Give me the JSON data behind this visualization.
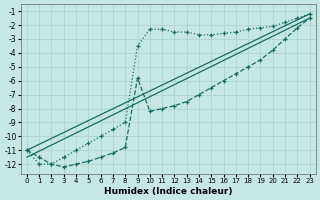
{
  "xlabel": "Humidex (Indice chaleur)",
  "background_color": "#c5e8e5",
  "grid_color": "#a8d0cd",
  "line_color": "#1a6b65",
  "xlim": [
    -0.5,
    23.5
  ],
  "ylim": [
    -12.7,
    -0.5
  ],
  "x_ticks": [
    0,
    1,
    2,
    3,
    4,
    5,
    6,
    7,
    8,
    9,
    10,
    11,
    12,
    13,
    14,
    15,
    16,
    17,
    18,
    19,
    20,
    21,
    22,
    23
  ],
  "y_ticks": [
    -1,
    -2,
    -3,
    -4,
    -5,
    -6,
    -7,
    -8,
    -9,
    -10,
    -11,
    -12
  ],
  "series1_x": [
    0,
    1,
    2,
    3,
    4,
    5,
    6,
    7,
    8,
    9,
    10,
    11,
    12,
    13,
    14,
    15,
    16,
    17,
    18,
    19,
    20,
    21,
    22,
    23
  ],
  "series1_y": [
    -11.0,
    -12.0,
    -12.0,
    -11.5,
    -11.0,
    -10.5,
    -10.0,
    -9.5,
    -9.0,
    -3.5,
    -2.3,
    -2.3,
    -2.5,
    -2.5,
    -2.7,
    -2.7,
    -2.6,
    -2.5,
    -2.3,
    -2.2,
    -2.1,
    -1.8,
    -1.5,
    -1.2
  ],
  "series2_x": [
    0,
    1,
    2,
    3,
    4,
    5,
    6,
    7,
    8,
    9,
    10,
    11,
    12,
    13,
    14,
    15,
    16,
    17,
    18,
    19,
    20,
    21,
    22,
    23
  ],
  "series2_y": [
    -11.0,
    -11.5,
    -12.0,
    -12.2,
    -12.0,
    -11.8,
    -11.5,
    -11.2,
    -10.8,
    -5.8,
    -8.2,
    -8.0,
    -7.8,
    -7.5,
    -7.0,
    -6.5,
    -6.0,
    -5.5,
    -5.0,
    -4.5,
    -3.8,
    -3.0,
    -2.2,
    -1.5
  ],
  "series3_x": [
    0,
    23
  ],
  "series3_y": [
    -11.0,
    -1.2
  ],
  "series4_x": [
    0,
    23
  ],
  "series4_y": [
    -11.5,
    -1.5
  ]
}
